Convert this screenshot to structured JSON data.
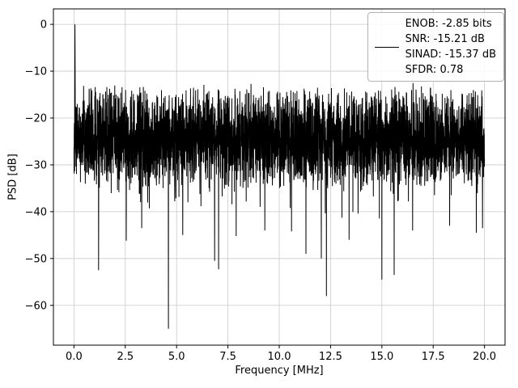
{
  "chart_data": {
    "type": "line",
    "title": "",
    "xlabel": "Frequency [MHz]",
    "ylabel": "PSD [dB]",
    "xlim": [
      -1,
      21
    ],
    "ylim": [
      -68.5,
      3.3
    ],
    "xticks": [
      0.0,
      2.5,
      5.0,
      7.5,
      10.0,
      12.5,
      15.0,
      17.5,
      20.0
    ],
    "xtick_labels": [
      "0.0",
      "2.5",
      "5.0",
      "7.5",
      "10.0",
      "12.5",
      "15.0",
      "17.5",
      "20.0"
    ],
    "yticks": [
      0,
      -10,
      -20,
      -30,
      -40,
      -50,
      -60
    ],
    "ytick_labels": [
      "0",
      "−10",
      "−20",
      "−30",
      "−40",
      "−50",
      "−60"
    ],
    "grid": true,
    "grid_color": "#c9c9c9",
    "line_color": "#000000",
    "series": [
      {
        "name": "psd",
        "description": "Noise-like power spectral density trace, dense band of values roughly between -36 dB and -13 dB centered near -24 dB across 0-20 MHz, a fundamental tone peak reaching 0 dB near 0 MHz, and deep notches listed in 'spikes'.",
        "n_points": 4096,
        "x_range": [
          0,
          20
        ],
        "band_top": -12.5,
        "band_mean": -24,
        "band_bottom": -37,
        "peak": {
          "x": 0.05,
          "y": 0
        },
        "spikes": [
          [
            1.2,
            -52.5
          ],
          [
            2.55,
            -46.2
          ],
          [
            3.3,
            -43.5
          ],
          [
            4.6,
            -65.0
          ],
          [
            5.3,
            -45.0
          ],
          [
            6.85,
            -50.5
          ],
          [
            7.05,
            -52.3
          ],
          [
            7.9,
            -45.2
          ],
          [
            9.3,
            -44.0
          ],
          [
            10.6,
            -44.2
          ],
          [
            11.3,
            -49.0
          ],
          [
            12.05,
            -50.0
          ],
          [
            12.3,
            -58.0
          ],
          [
            13.4,
            -46.0
          ],
          [
            15.0,
            -54.5
          ],
          [
            15.6,
            -53.5
          ],
          [
            16.5,
            -44.0
          ],
          [
            18.3,
            -43.0
          ],
          [
            19.6,
            -44.5
          ],
          [
            19.9,
            -43.5
          ]
        ]
      }
    ],
    "legend": {
      "position": "upper right",
      "entries": [
        {
          "label": "ENOB: -2.85 bits\nSNR: -15.21 dB\nSINAD: -15.37 dB\nSFDR: 0.78",
          "color": "#000000"
        }
      ]
    }
  },
  "legend": {
    "lines": [
      "ENOB: -2.85 bits",
      "SNR: -15.21 dB",
      "SINAD: -15.37 dB",
      "SFDR: 0.78"
    ]
  }
}
